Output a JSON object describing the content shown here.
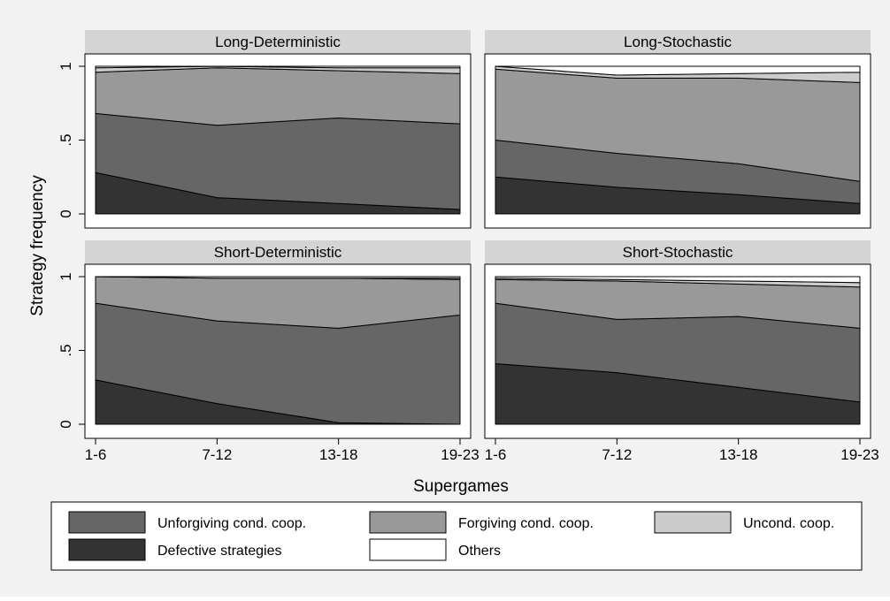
{
  "chart_data": {
    "type": "area",
    "stacked": true,
    "title": "",
    "xlabel": "Supergames",
    "ylabel": "Strategy frequency",
    "categories": [
      "1-6",
      "7-12",
      "13-18",
      "19-23"
    ],
    "ylim": [
      0,
      1
    ],
    "yticks": [
      "0",
      ".5",
      "1"
    ],
    "ytick_values": [
      0,
      0.5,
      1
    ],
    "grid": false,
    "legend_position": "bottom",
    "colors": {
      "Defective strategies": "#333333",
      "Unforgiving cond. coop.": "#666666",
      "Forgiving cond. coop.": "#999999",
      "Uncond. coop.": "#cccccc",
      "Others": "#ffffff"
    },
    "legend": [
      "Unforgiving cond. coop.",
      "Forgiving cond. coop.",
      "Uncond. coop.",
      "Defective strategies",
      "Others"
    ],
    "panels": [
      {
        "title": "Long-Deterministic",
        "series": [
          {
            "name": "Defective strategies",
            "values": [
              0.28,
              0.11,
              0.07,
              0.03
            ]
          },
          {
            "name": "Unforgiving cond. coop.",
            "values": [
              0.4,
              0.49,
              0.58,
              0.58
            ]
          },
          {
            "name": "Forgiving cond. coop.",
            "values": [
              0.28,
              0.39,
              0.32,
              0.34
            ]
          },
          {
            "name": "Uncond. coop.",
            "values": [
              0.03,
              0.01,
              0.02,
              0.04
            ]
          },
          {
            "name": "Others",
            "values": [
              0.01,
              0.0,
              0.01,
              0.01
            ]
          }
        ]
      },
      {
        "title": "Long-Stochastic",
        "series": [
          {
            "name": "Defective strategies",
            "values": [
              0.25,
              0.18,
              0.13,
              0.07
            ]
          },
          {
            "name": "Unforgiving cond. coop.",
            "values": [
              0.25,
              0.23,
              0.21,
              0.15
            ]
          },
          {
            "name": "Forgiving cond. coop.",
            "values": [
              0.48,
              0.51,
              0.58,
              0.67
            ]
          },
          {
            "name": "Uncond. coop.",
            "values": [
              0.02,
              0.02,
              0.03,
              0.07
            ]
          },
          {
            "name": "Others",
            "values": [
              0.0,
              0.06,
              0.05,
              0.04
            ]
          }
        ]
      },
      {
        "title": "Short-Deterministic",
        "series": [
          {
            "name": "Defective strategies",
            "values": [
              0.3,
              0.14,
              0.01,
              0.0
            ]
          },
          {
            "name": "Unforgiving cond. coop.",
            "values": [
              0.52,
              0.56,
              0.64,
              0.74
            ]
          },
          {
            "name": "Forgiving cond. coop.",
            "values": [
              0.18,
              0.29,
              0.34,
              0.24
            ]
          },
          {
            "name": "Uncond. coop.",
            "values": [
              0.0,
              0.0,
              0.0,
              0.01
            ]
          },
          {
            "name": "Others",
            "values": [
              0.0,
              0.01,
              0.01,
              0.01
            ]
          }
        ]
      },
      {
        "title": "Short-Stochastic",
        "series": [
          {
            "name": "Defective strategies",
            "values": [
              0.41,
              0.35,
              0.25,
              0.15
            ]
          },
          {
            "name": "Unforgiving cond. coop.",
            "values": [
              0.41,
              0.36,
              0.48,
              0.5
            ]
          },
          {
            "name": "Forgiving cond. coop.",
            "values": [
              0.16,
              0.26,
              0.22,
              0.28
            ]
          },
          {
            "name": "Uncond. coop.",
            "values": [
              0.01,
              0.01,
              0.02,
              0.03
            ]
          },
          {
            "name": "Others",
            "values": [
              0.01,
              0.02,
              0.03,
              0.04
            ]
          }
        ]
      }
    ]
  }
}
